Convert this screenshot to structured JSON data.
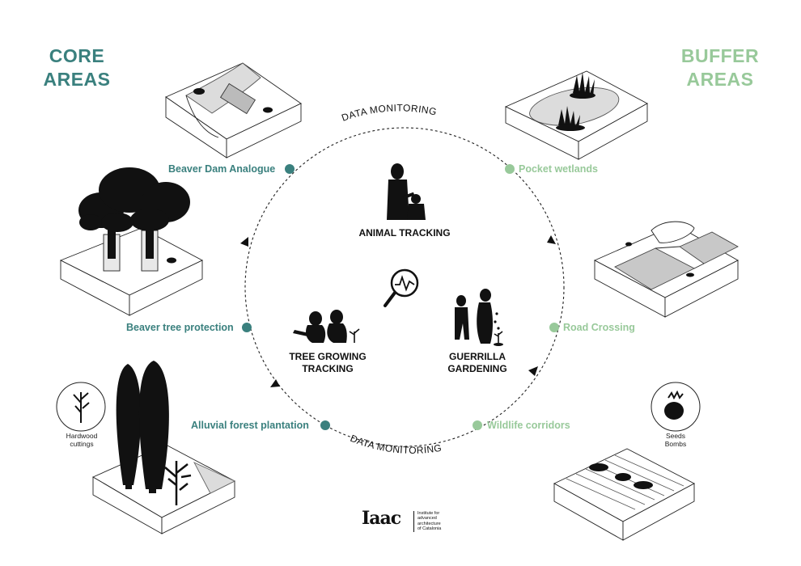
{
  "core_title": "CORE\nAREAS",
  "buffer_title": "BUFFER\nAREAS",
  "colors": {
    "core": "#3a807e",
    "buffer": "#98c99a",
    "ink": "#111111",
    "terrain": "#dcdcdc"
  },
  "cycle_labels": {
    "top": "DATA MONITORING",
    "bottom": "DATA MONITORING"
  },
  "center": {
    "animal_tracking": "ANIMAL TRACKING",
    "tree_growing": "TREE GROWING\nTRACKING",
    "guerrilla": "GUERRILLA\nGARDENING",
    "icon": "magnifier-signal-icon"
  },
  "core_items": [
    {
      "label": "Beaver Dam Analogue"
    },
    {
      "label": "Beaver tree protection"
    },
    {
      "label": "Alluvial forest plantation"
    }
  ],
  "buffer_items": [
    {
      "label": "Pocket wetlands"
    },
    {
      "label": "Road Crossing"
    },
    {
      "label": "Wildlife corridors"
    }
  ],
  "hardwood_caption": "Hardwood\ncuttings",
  "seeds_caption": "Seeds\nBombs",
  "logo": {
    "mark": "Iaac",
    "text": "Institute for\nadvanced\narchitecture\nof Catalonia"
  }
}
